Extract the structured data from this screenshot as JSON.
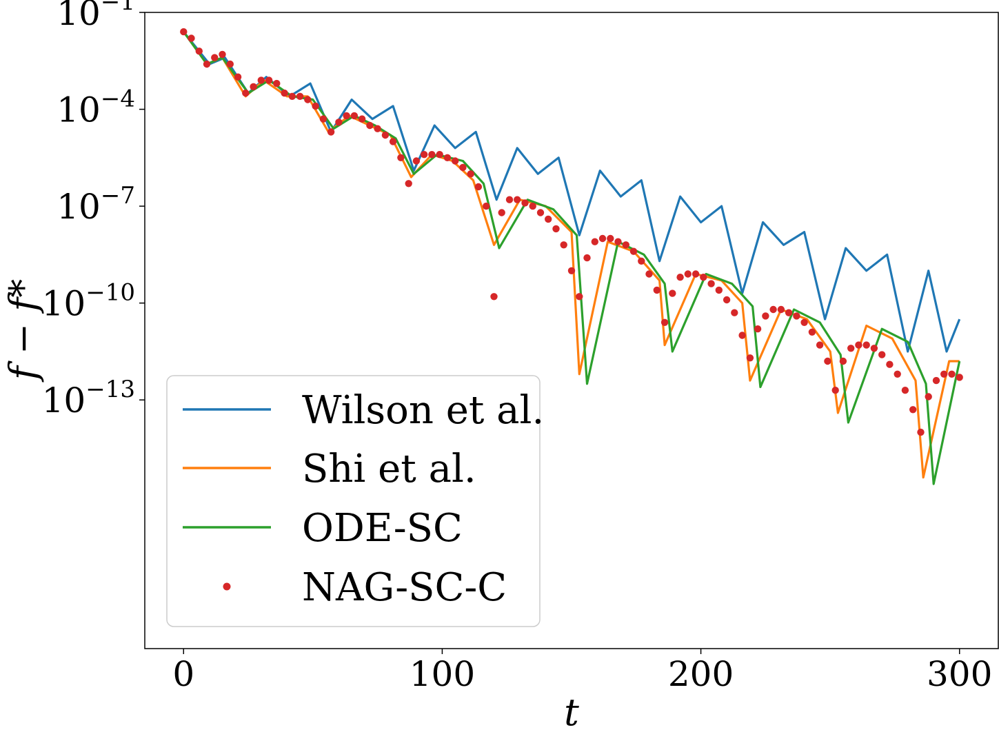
{
  "chart_data": {
    "type": "line",
    "title": "",
    "xlabel": "t",
    "ylabel": "f − f*",
    "xlim": [
      -15,
      315
    ],
    "ylim_exp": [
      -20.7,
      -1
    ],
    "yscale": "log",
    "x_ticks": [
      0,
      100,
      200,
      300
    ],
    "y_ticks": [
      {
        "base": "10",
        "exp": "−1",
        "value_exp": -1
      },
      {
        "base": "10",
        "exp": "−4",
        "value_exp": -4
      },
      {
        "base": "10",
        "exp": "−7",
        "value_exp": -7
      },
      {
        "base": "10",
        "exp": "−10",
        "value_exp": -10
      },
      {
        "base": "10",
        "exp": "−13",
        "value_exp": -13
      }
    ],
    "legend_position": "lower-left",
    "grid": false,
    "series": [
      {
        "name": "Wilson et al.",
        "style": "line",
        "color": "#1f77b4",
        "x": [
          0,
          10,
          16,
          25,
          32,
          41,
          49,
          57,
          65,
          73,
          81,
          89,
          97,
          105,
          113,
          121,
          129,
          137,
          145,
          153,
          161,
          169,
          177,
          184,
          192,
          200,
          208,
          216,
          224,
          232,
          240,
          248,
          256,
          264,
          272,
          280,
          288,
          295,
          300
        ],
        "y_exp": [
          -1.6,
          -2.6,
          -2.4,
          -3.5,
          -3.0,
          -3.6,
          -3.2,
          -4.7,
          -3.7,
          -4.3,
          -3.9,
          -5.9,
          -4.5,
          -5.2,
          -4.7,
          -6.8,
          -5.2,
          -6.0,
          -5.5,
          -7.9,
          -5.9,
          -6.7,
          -6.2,
          -8.7,
          -6.7,
          -7.5,
          -7.0,
          -9.7,
          -7.5,
          -8.2,
          -7.8,
          -10.5,
          -8.3,
          -9.0,
          -8.5,
          -11.5,
          -9.0,
          -11.5,
          -10.5
        ]
      },
      {
        "name": "Shi et al.",
        "style": "line",
        "color": "#ff7f0e",
        "x": [
          0,
          9,
          15,
          24,
          31,
          40,
          48,
          56,
          64,
          72,
          80,
          88,
          96,
          104,
          112,
          120,
          130,
          140,
          150,
          153,
          164,
          174,
          184,
          186,
          198,
          208,
          216,
          219,
          231,
          241,
          250,
          253,
          264,
          274,
          283,
          286,
          296,
          300
        ],
        "y_exp": [
          -1.6,
          -2.6,
          -2.4,
          -3.6,
          -3.1,
          -3.6,
          -3.6,
          -4.7,
          -4.2,
          -4.5,
          -4.8,
          -6.1,
          -5.4,
          -5.6,
          -6.2,
          -8.2,
          -6.8,
          -7.0,
          -7.8,
          -12.2,
          -8.1,
          -8.4,
          -9.3,
          -11.3,
          -9.1,
          -9.3,
          -10.0,
          -12.4,
          -10.2,
          -10.5,
          -11.5,
          -13.4,
          -10.7,
          -11.1,
          -12.4,
          -15.4,
          -11.8,
          -11.8
        ]
      },
      {
        "name": "ODE-SC",
        "style": "line",
        "color": "#2ca02c",
        "x": [
          0,
          9,
          15,
          25,
          33,
          42,
          50,
          58,
          66,
          74,
          82,
          89,
          98,
          108,
          116,
          122,
          133,
          143,
          152,
          156,
          168,
          178,
          186,
          189,
          202,
          212,
          220,
          223,
          236,
          246,
          254,
          257,
          270,
          280,
          287,
          290,
          300
        ],
        "y_exp": [
          -1.6,
          -2.6,
          -2.4,
          -3.5,
          -3.1,
          -3.6,
          -3.7,
          -4.6,
          -4.2,
          -4.5,
          -4.9,
          -6.0,
          -5.4,
          -5.6,
          -6.3,
          -8.3,
          -6.8,
          -7.1,
          -7.9,
          -12.5,
          -8.1,
          -8.5,
          -9.4,
          -11.5,
          -9.1,
          -9.4,
          -10.1,
          -12.6,
          -10.2,
          -10.6,
          -11.6,
          -13.7,
          -10.8,
          -11.2,
          -12.5,
          -15.6,
          -11.8
        ]
      },
      {
        "name": "NAG-SC-C",
        "style": "dots",
        "color": "#d62728",
        "x": [
          0,
          3,
          6,
          9,
          12,
          15,
          18,
          21,
          24,
          27,
          30,
          33,
          36,
          39,
          42,
          45,
          48,
          51,
          54,
          57,
          60,
          63,
          66,
          69,
          72,
          75,
          78,
          81,
          84,
          87,
          90,
          93,
          96,
          99,
          102,
          105,
          108,
          111,
          114,
          117,
          120,
          123,
          126,
          129,
          132,
          135,
          138,
          141,
          144,
          147,
          150,
          153,
          156,
          159,
          162,
          165,
          168,
          171,
          174,
          177,
          180,
          183,
          186,
          189,
          192,
          195,
          198,
          201,
          204,
          207,
          210,
          213,
          216,
          219,
          222,
          225,
          228,
          231,
          234,
          237,
          240,
          243,
          246,
          249,
          252,
          255,
          258,
          261,
          264,
          267,
          270,
          273,
          276,
          279,
          282,
          285,
          288,
          291,
          294,
          297,
          300
        ],
        "y_exp": [
          -1.6,
          -1.8,
          -2.2,
          -2.6,
          -2.4,
          -2.3,
          -2.6,
          -3.0,
          -3.5,
          -3.3,
          -3.1,
          -3.1,
          -3.2,
          -3.5,
          -3.6,
          -3.6,
          -3.7,
          -3.9,
          -4.3,
          -4.7,
          -4.4,
          -4.2,
          -4.2,
          -4.3,
          -4.5,
          -4.6,
          -4.8,
          -5.0,
          -5.5,
          -6.3,
          -5.6,
          -5.4,
          -5.4,
          -5.4,
          -5.5,
          -5.6,
          -5.8,
          -6.0,
          -6.4,
          -7.0,
          -9.8,
          -7.2,
          -6.8,
          -6.8,
          -6.9,
          -7.0,
          -7.2,
          -7.4,
          -7.7,
          -8.2,
          -9.0,
          -9.8,
          -8.6,
          -8.1,
          -8.0,
          -8.0,
          -8.1,
          -8.2,
          -8.4,
          -8.7,
          -9.1,
          -9.6,
          -10.6,
          -9.7,
          -9.2,
          -9.1,
          -9.1,
          -9.2,
          -9.4,
          -9.6,
          -9.9,
          -10.3,
          -11.0,
          -11.7,
          -10.8,
          -10.4,
          -10.2,
          -10.2,
          -10.3,
          -10.4,
          -10.6,
          -10.9,
          -11.3,
          -11.8,
          -12.7,
          -11.8,
          -11.4,
          -11.3,
          -11.3,
          -11.4,
          -11.6,
          -11.9,
          -12.2,
          -12.7,
          -13.3,
          -14.0,
          -12.9,
          -12.4,
          -12.2,
          -12.2,
          -12.3
        ]
      }
    ]
  }
}
